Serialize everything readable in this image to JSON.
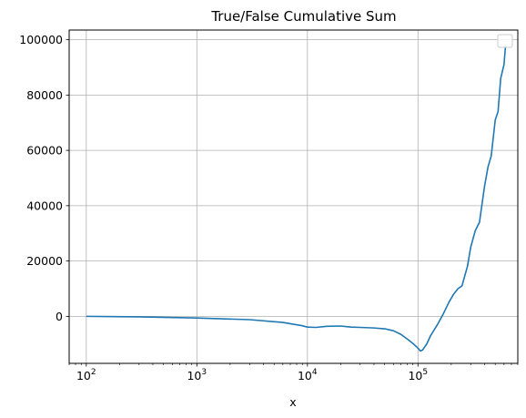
{
  "chart_data": {
    "type": "line",
    "title": "True/False Cumulative Sum",
    "xlabel": "x",
    "ylabel": "",
    "xscale": "log",
    "xlim": [
      70,
      800000
    ],
    "ylim": [
      -17000,
      103500
    ],
    "grid": true,
    "legend": {
      "placement": "top-right",
      "entries": []
    },
    "line_color": "#1f77b4",
    "x_ticks": [
      {
        "value": 100,
        "base": "10",
        "exp": "2"
      },
      {
        "value": 1000,
        "base": "10",
        "exp": "3"
      },
      {
        "value": 10000,
        "base": "10",
        "exp": "4"
      },
      {
        "value": 100000,
        "base": "10",
        "exp": "5"
      }
    ],
    "y_ticks": [
      {
        "value": 0,
        "label": "0"
      },
      {
        "value": 20000,
        "label": "20000"
      },
      {
        "value": 40000,
        "label": "40000"
      },
      {
        "value": 60000,
        "label": "60000"
      },
      {
        "value": 80000,
        "label": "80000"
      },
      {
        "value": 100000,
        "label": "100000"
      }
    ],
    "series": [
      {
        "x": [
          100,
          300,
          1000,
          3000,
          6000,
          9000,
          10000,
          12000,
          15000,
          20000,
          25000,
          30000,
          40000,
          50000,
          60000,
          70000,
          80000,
          90000,
          100000,
          105000,
          110000,
          120000,
          130000,
          150000,
          170000,
          190000,
          210000,
          230000,
          250000,
          280000,
          300000,
          330000,
          360000,
          400000,
          430000,
          460000,
          500000,
          530000,
          560000,
          600000,
          620000
        ],
        "y": [
          0,
          -200,
          -600,
          -1200,
          -2200,
          -3400,
          -3900,
          -4000,
          -3600,
          -3500,
          -3900,
          -4000,
          -4200,
          -4500,
          -5200,
          -6500,
          -8200,
          -9800,
          -11500,
          -12500,
          -12200,
          -10000,
          -7000,
          -3000,
          1000,
          5000,
          8000,
          10000,
          11000,
          18000,
          25000,
          31000,
          34000,
          47000,
          54000,
          58000,
          71000,
          74000,
          86000,
          91000,
          98000
        ]
      }
    ]
  }
}
